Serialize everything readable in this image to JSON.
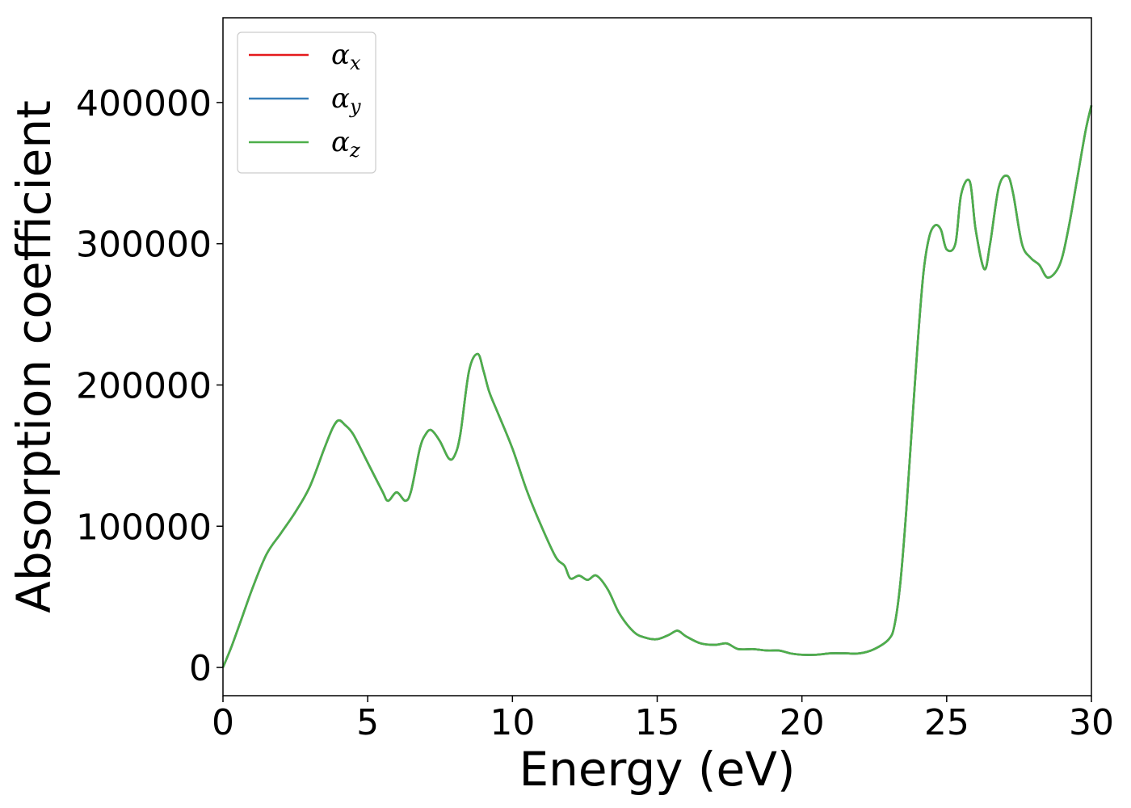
{
  "chart_data": {
    "type": "line",
    "xlabel": "Energy (eV)",
    "ylabel": "Absorption coefficient",
    "xlim": [
      0,
      30
    ],
    "ylim": [
      -20000,
      460000
    ],
    "xticks": [
      0,
      5,
      10,
      15,
      20,
      25,
      30
    ],
    "xtick_labels": [
      "0",
      "5",
      "10",
      "15",
      "20",
      "25",
      "30"
    ],
    "yticks": [
      0,
      100000,
      200000,
      300000,
      400000
    ],
    "ytick_labels": [
      "0",
      "100000",
      "200000",
      "300000",
      "400000"
    ],
    "grid": false,
    "legend_position": "top-left",
    "series": [
      {
        "name": "α",
        "subscript": "x",
        "color": "#e41a1c",
        "x": [
          0,
          0.3,
          0.6,
          1.0,
          1.5,
          2.0,
          2.5,
          3.0,
          3.5,
          3.8,
          4.0,
          4.2,
          4.5,
          5.0,
          5.5,
          5.7,
          6.0,
          6.3,
          6.5,
          6.8,
          7.0,
          7.2,
          7.5,
          7.8,
          8.0,
          8.2,
          8.5,
          8.8,
          9.0,
          9.2,
          9.5,
          10.0,
          10.5,
          11.0,
          11.5,
          11.8,
          12.0,
          12.3,
          12.6,
          12.9,
          13.3,
          13.7,
          14.2,
          14.6,
          15.0,
          15.4,
          15.7,
          16.0,
          16.5,
          17.0,
          17.4,
          17.8,
          18.3,
          18.8,
          19.2,
          19.6,
          20.0,
          20.5,
          21.0,
          21.5,
          22.0,
          22.5,
          23.0,
          23.2,
          23.4,
          23.6,
          23.8,
          24.0,
          24.2,
          24.4,
          24.6,
          24.8,
          25.0,
          25.3,
          25.5,
          25.8,
          26.0,
          26.3,
          26.5,
          26.8,
          27.1,
          27.3,
          27.6,
          27.9,
          28.2,
          28.5,
          28.9,
          29.2,
          29.5,
          29.8,
          30.0
        ],
        "y": [
          0,
          15000,
          32000,
          55000,
          80000,
          95000,
          110000,
          128000,
          155000,
          170000,
          175000,
          172000,
          165000,
          145000,
          125000,
          118000,
          124000,
          118000,
          125000,
          155000,
          165000,
          168000,
          160000,
          148000,
          150000,
          165000,
          210000,
          222000,
          210000,
          195000,
          180000,
          155000,
          125000,
          100000,
          78000,
          72000,
          63000,
          65000,
          62000,
          65000,
          55000,
          38000,
          25000,
          21000,
          20000,
          23000,
          26000,
          22000,
          17000,
          16000,
          17000,
          13000,
          13000,
          12000,
          12000,
          10000,
          9000,
          9000,
          10000,
          10000,
          10000,
          13000,
          20000,
          30000,
          60000,
          110000,
          170000,
          230000,
          280000,
          305000,
          313000,
          310000,
          296000,
          300000,
          335000,
          344000,
          310000,
          282000,
          300000,
          340000,
          348000,
          335000,
          300000,
          290000,
          285000,
          276000,
          285000,
          310000,
          345000,
          380000,
          398000
        ]
      },
      {
        "name": "α",
        "subscript": "y",
        "color": "#377eb8",
        "x": [
          0,
          0.3,
          0.6,
          1.0,
          1.5,
          2.0,
          2.5,
          3.0,
          3.5,
          3.8,
          4.0,
          4.2,
          4.5,
          5.0,
          5.5,
          5.7,
          6.0,
          6.3,
          6.5,
          6.8,
          7.0,
          7.2,
          7.5,
          7.8,
          8.0,
          8.2,
          8.5,
          8.8,
          9.0,
          9.2,
          9.5,
          10.0,
          10.5,
          11.0,
          11.5,
          11.8,
          12.0,
          12.3,
          12.6,
          12.9,
          13.3,
          13.7,
          14.2,
          14.6,
          15.0,
          15.4,
          15.7,
          16.0,
          16.5,
          17.0,
          17.4,
          17.8,
          18.3,
          18.8,
          19.2,
          19.6,
          20.0,
          20.5,
          21.0,
          21.5,
          22.0,
          22.5,
          23.0,
          23.2,
          23.4,
          23.6,
          23.8,
          24.0,
          24.2,
          24.4,
          24.6,
          24.8,
          25.0,
          25.3,
          25.5,
          25.8,
          26.0,
          26.3,
          26.5,
          26.8,
          27.1,
          27.3,
          27.6,
          27.9,
          28.2,
          28.5,
          28.9,
          29.2,
          29.5,
          29.8,
          30.0
        ],
        "y": [
          0,
          15000,
          32000,
          55000,
          80000,
          95000,
          110000,
          128000,
          155000,
          170000,
          175000,
          172000,
          165000,
          145000,
          125000,
          118000,
          124000,
          118000,
          125000,
          155000,
          165000,
          168000,
          160000,
          148000,
          150000,
          165000,
          210000,
          222000,
          210000,
          195000,
          180000,
          155000,
          125000,
          100000,
          78000,
          72000,
          63000,
          65000,
          62000,
          65000,
          55000,
          38000,
          25000,
          21000,
          20000,
          23000,
          26000,
          22000,
          17000,
          16000,
          17000,
          13000,
          13000,
          12000,
          12000,
          10000,
          9000,
          9000,
          10000,
          10000,
          10000,
          13000,
          20000,
          30000,
          60000,
          110000,
          170000,
          230000,
          280000,
          305000,
          313000,
          310000,
          296000,
          300000,
          335000,
          344000,
          310000,
          282000,
          300000,
          340000,
          348000,
          335000,
          300000,
          290000,
          285000,
          276000,
          285000,
          310000,
          345000,
          380000,
          398000
        ]
      },
      {
        "name": "α",
        "subscript": "z",
        "color": "#4daf4a",
        "x": [
          0,
          0.3,
          0.6,
          1.0,
          1.5,
          2.0,
          2.5,
          3.0,
          3.5,
          3.8,
          4.0,
          4.2,
          4.5,
          5.0,
          5.5,
          5.7,
          6.0,
          6.3,
          6.5,
          6.8,
          7.0,
          7.2,
          7.5,
          7.8,
          8.0,
          8.2,
          8.5,
          8.8,
          9.0,
          9.2,
          9.5,
          10.0,
          10.5,
          11.0,
          11.5,
          11.8,
          12.0,
          12.3,
          12.6,
          12.9,
          13.3,
          13.7,
          14.2,
          14.6,
          15.0,
          15.4,
          15.7,
          16.0,
          16.5,
          17.0,
          17.4,
          17.8,
          18.3,
          18.8,
          19.2,
          19.6,
          20.0,
          20.5,
          21.0,
          21.5,
          22.0,
          22.5,
          23.0,
          23.2,
          23.4,
          23.6,
          23.8,
          24.0,
          24.2,
          24.4,
          24.6,
          24.8,
          25.0,
          25.3,
          25.5,
          25.8,
          26.0,
          26.3,
          26.5,
          26.8,
          27.1,
          27.3,
          27.6,
          27.9,
          28.2,
          28.5,
          28.9,
          29.2,
          29.5,
          29.8,
          30.0
        ],
        "y": [
          0,
          15000,
          32000,
          55000,
          80000,
          95000,
          110000,
          128000,
          155000,
          170000,
          175000,
          172000,
          165000,
          145000,
          125000,
          118000,
          124000,
          118000,
          125000,
          155000,
          165000,
          168000,
          160000,
          148000,
          150000,
          165000,
          210000,
          222000,
          210000,
          195000,
          180000,
          155000,
          125000,
          100000,
          78000,
          72000,
          63000,
          65000,
          62000,
          65000,
          55000,
          38000,
          25000,
          21000,
          20000,
          23000,
          26000,
          22000,
          17000,
          16000,
          17000,
          13000,
          13000,
          12000,
          12000,
          10000,
          9000,
          9000,
          10000,
          10000,
          10000,
          13000,
          20000,
          30000,
          60000,
          110000,
          170000,
          230000,
          280000,
          305000,
          313000,
          310000,
          296000,
          300000,
          335000,
          344000,
          310000,
          282000,
          300000,
          340000,
          348000,
          335000,
          300000,
          290000,
          285000,
          276000,
          285000,
          310000,
          345000,
          380000,
          398000
        ]
      }
    ]
  }
}
